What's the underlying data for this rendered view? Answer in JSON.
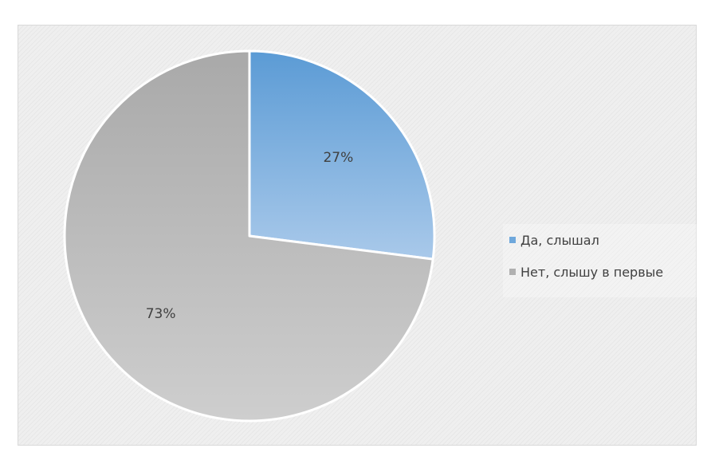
{
  "chart_data": {
    "type": "pie",
    "title": "",
    "categories": [
      "Да, слышал",
      "Нет, слышу в первые"
    ],
    "values": [
      27,
      73
    ],
    "data_labels": [
      "27%",
      "73%"
    ],
    "colors": [
      "#7fb0e0",
      "#c2c2c2"
    ],
    "legend_position": "right"
  },
  "legend": {
    "items": [
      {
        "label": "Да, слышал",
        "color": "#6fa8dc"
      },
      {
        "label": "Нет, слышу в первые",
        "color": "#b0b0b0"
      }
    ]
  }
}
